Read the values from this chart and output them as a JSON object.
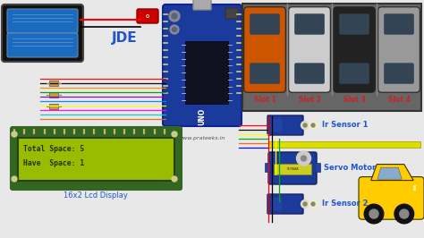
{
  "bg_color": "#e8e8e8",
  "battery_color": "#1a6bbf",
  "battery_bg": "#111111",
  "arduino_color": "#1a3a9c",
  "lcd_bg": "#99bb00",
  "lcd_text_color": "#223300",
  "lcd_text_line1": "Total Space: 5",
  "lcd_text_line2": "Have  Space: 1",
  "lcd_label": "16x2 Lcd Display",
  "lcd_label_color": "#2255cc",
  "jde_label": "JDE",
  "jde_color": "#2255cc",
  "website": "www.prateeks.in",
  "website_color": "#555555",
  "slot_labels": [
    "Slot 1",
    "Slot 2",
    "Slot 3",
    "Slot 4"
  ],
  "slot_color": "#cc2222",
  "ir1_label": "Ir Sensor 1",
  "ir2_label": "Ir Sensor 2",
  "servo_label": "Servo Motor",
  "sensor_label_color": "#2255cc",
  "parking_bg": "#666666",
  "car1_color": "#cc5500",
  "car2_color": "#cccccc",
  "car3_color": "#222222",
  "car4_color": "#999999",
  "car5_color": "#ffcc00",
  "barrier_color": "#dddd00",
  "switch_color": "#cc0000",
  "wire_colors_left": [
    "#ff0000",
    "#000000",
    "#ff6600",
    "#00aa00",
    "#8800ff",
    "#00aaff",
    "#ffff00",
    "#ff00ff",
    "#00ffff",
    "#ff8800"
  ],
  "wire_colors_right": [
    "#ff0000",
    "#000000",
    "#ffff00",
    "#00aa00",
    "#ff6600",
    "#0000ff"
  ]
}
